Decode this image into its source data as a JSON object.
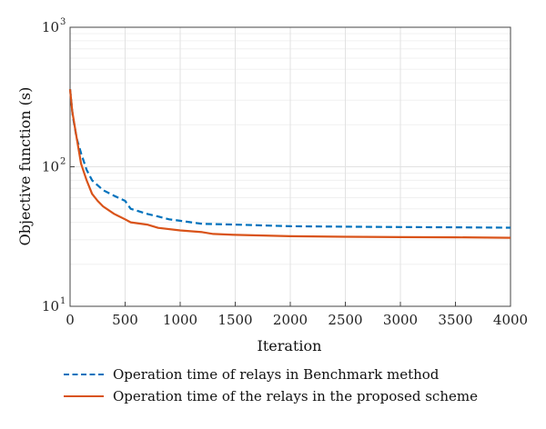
{
  "chart_data": {
    "type": "line",
    "title": "",
    "xlabel": "Iteration",
    "ylabel": "Objective function (s)",
    "xlim": [
      0,
      4000
    ],
    "ylim": [
      10,
      1000
    ],
    "yscale": "log",
    "grid": true,
    "legend_position": "below",
    "x_ticks": [
      "0",
      "500",
      "1000",
      "1500",
      "2000",
      "2500",
      "3000",
      "3500",
      "4000"
    ],
    "y_ticks": [
      {
        "base": "10",
        "exp": "1",
        "value": 10
      },
      {
        "base": "10",
        "exp": "2",
        "value": 100
      },
      {
        "base": "10",
        "exp": "3",
        "value": 1000
      }
    ],
    "series": [
      {
        "name": "Operation time of relays in Benchmark method",
        "color": "#0072BD",
        "style": "dashed",
        "points": [
          [
            0,
            360
          ],
          [
            25,
            230
          ],
          [
            60,
            160
          ],
          [
            100,
            125
          ],
          [
            150,
            95
          ],
          [
            200,
            80
          ],
          [
            300,
            68
          ],
          [
            400,
            62
          ],
          [
            500,
            57
          ],
          [
            550,
            50
          ],
          [
            700,
            46
          ],
          [
            800,
            44
          ],
          [
            900,
            42
          ],
          [
            1000,
            41
          ],
          [
            1200,
            39
          ],
          [
            1500,
            38.5
          ],
          [
            2000,
            37.5
          ],
          [
            2500,
            37.2
          ],
          [
            3000,
            37
          ],
          [
            3500,
            36.8
          ],
          [
            4000,
            36.6
          ]
        ]
      },
      {
        "name": "Operation time of the relays in the proposed scheme",
        "color": "#D95319",
        "style": "solid",
        "points": [
          [
            0,
            360
          ],
          [
            20,
            250
          ],
          [
            50,
            180
          ],
          [
            100,
            105
          ],
          [
            150,
            80
          ],
          [
            200,
            64
          ],
          [
            250,
            57
          ],
          [
            300,
            52
          ],
          [
            400,
            46
          ],
          [
            500,
            42
          ],
          [
            550,
            40
          ],
          [
            700,
            38.5
          ],
          [
            800,
            36.5
          ],
          [
            1000,
            35
          ],
          [
            1200,
            34
          ],
          [
            1300,
            33
          ],
          [
            1500,
            32.5
          ],
          [
            2000,
            31.8
          ],
          [
            2500,
            31.5
          ],
          [
            3000,
            31.3
          ],
          [
            3500,
            31.2
          ],
          [
            4000,
            31
          ]
        ]
      }
    ]
  }
}
